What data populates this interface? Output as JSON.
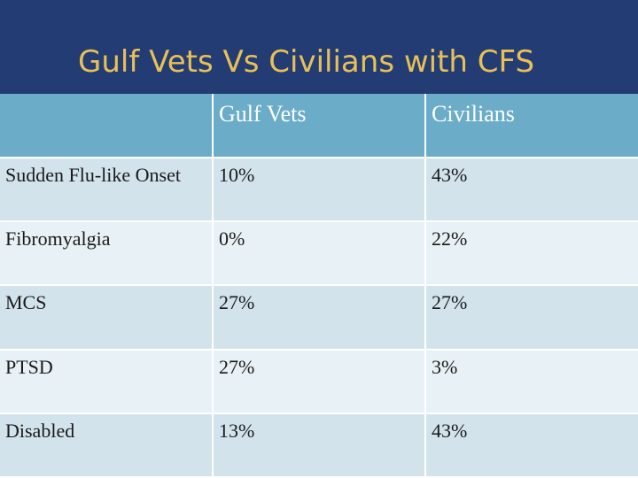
{
  "slide": {
    "title": "Gulf Vets Vs Civilians with CFS"
  },
  "table": {
    "columns": [
      "",
      "Gulf Vets",
      "Civilians"
    ],
    "rows": [
      {
        "label": "Sudden Flu-like Onset",
        "gulf_vets": "10%",
        "civilians": "43%"
      },
      {
        "label": "Fibromyalgia",
        "gulf_vets": "0%",
        "civilians": "22%"
      },
      {
        "label": "MCS",
        "gulf_vets": "27%",
        "civilians": "27%"
      },
      {
        "label": "PTSD",
        "gulf_vets": "27%",
        "civilians": "3%"
      },
      {
        "label": "Disabled",
        "gulf_vets": "13%",
        "civilians": "43%"
      }
    ]
  },
  "colors": {
    "header_bg": "#233c74",
    "title_text": "#e8c056",
    "table_header_bg": "#6badc9",
    "row_dark": "#d2e3ec",
    "row_light": "#e8f1f5"
  }
}
